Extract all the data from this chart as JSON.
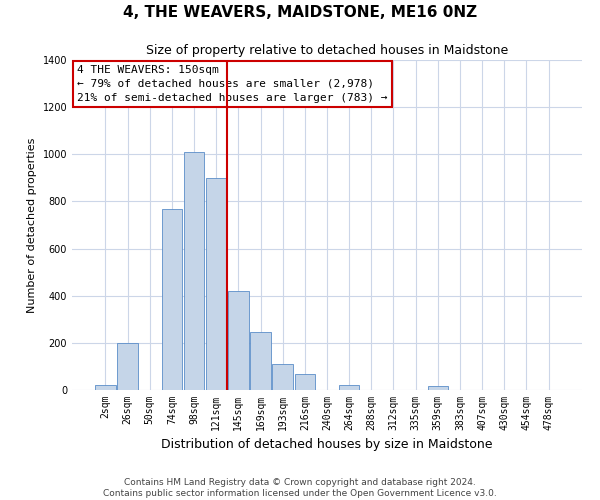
{
  "title": "4, THE WEAVERS, MAIDSTONE, ME16 0NZ",
  "subtitle": "Size of property relative to detached houses in Maidstone",
  "xlabel": "Distribution of detached houses by size in Maidstone",
  "ylabel": "Number of detached properties",
  "bar_labels": [
    "2sqm",
    "26sqm",
    "50sqm",
    "74sqm",
    "98sqm",
    "121sqm",
    "145sqm",
    "169sqm",
    "193sqm",
    "216sqm",
    "240sqm",
    "264sqm",
    "288sqm",
    "312sqm",
    "335sqm",
    "359sqm",
    "383sqm",
    "407sqm",
    "430sqm",
    "454sqm",
    "478sqm"
  ],
  "bar_values": [
    20,
    200,
    0,
    770,
    1010,
    900,
    420,
    245,
    110,
    70,
    0,
    20,
    0,
    0,
    0,
    15,
    0,
    0,
    0,
    0,
    0
  ],
  "bar_color": "#c5d5e8",
  "bar_edge_color": "#5b8dc8",
  "vline_x_index": 6,
  "vline_color": "#cc0000",
  "annotation_text": "4 THE WEAVERS: 150sqm\n← 79% of detached houses are smaller (2,978)\n21% of semi-detached houses are larger (783) →",
  "annotation_box_color": "#ffffff",
  "annotation_box_edge_color": "#cc0000",
  "ylim": [
    0,
    1400
  ],
  "yticks": [
    0,
    200,
    400,
    600,
    800,
    1000,
    1200,
    1400
  ],
  "background_color": "#ffffff",
  "grid_color": "#ccd6e8",
  "footer_text": "Contains HM Land Registry data © Crown copyright and database right 2024.\nContains public sector information licensed under the Open Government Licence v3.0.",
  "title_fontsize": 11,
  "subtitle_fontsize": 9,
  "xlabel_fontsize": 9,
  "ylabel_fontsize": 8,
  "tick_fontsize": 7,
  "annotation_fontsize": 8,
  "footer_fontsize": 6.5
}
